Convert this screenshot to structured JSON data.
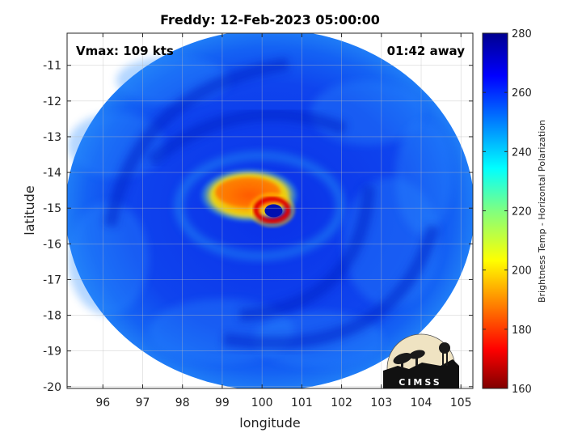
{
  "chart_data": {
    "type": "heatmap",
    "title": "Freddy: 12-Feb-2023 05:00:00",
    "xlabel": "longitude",
    "ylabel": "latitude",
    "xlim": [
      95.1,
      105.3
    ],
    "ylim": [
      -20.05,
      -10.1
    ],
    "xticks": [
      96,
      97,
      98,
      99,
      100,
      101,
      102,
      103,
      104,
      105
    ],
    "yticks": [
      -11,
      -12,
      -13,
      -14,
      -15,
      -16,
      -17,
      -18,
      -19,
      -20
    ],
    "grid": true,
    "annotations": {
      "vmax": "Vmax: 109 kts",
      "time_offset": "01:42 away"
    },
    "colorbar": {
      "label": "Brightness Temp - Horizontal Polarization",
      "range": [
        160,
        280
      ],
      "ticks": [
        280,
        260,
        240,
        220,
        200,
        180,
        160
      ],
      "colormap": "jet"
    },
    "storm": {
      "eye_lon": 100.25,
      "eye_lat": -15.05,
      "background_value": 258,
      "swath_center_lon": 100.2,
      "swath_center_lat": -15.05
    },
    "logo_text": "CIMSS"
  }
}
